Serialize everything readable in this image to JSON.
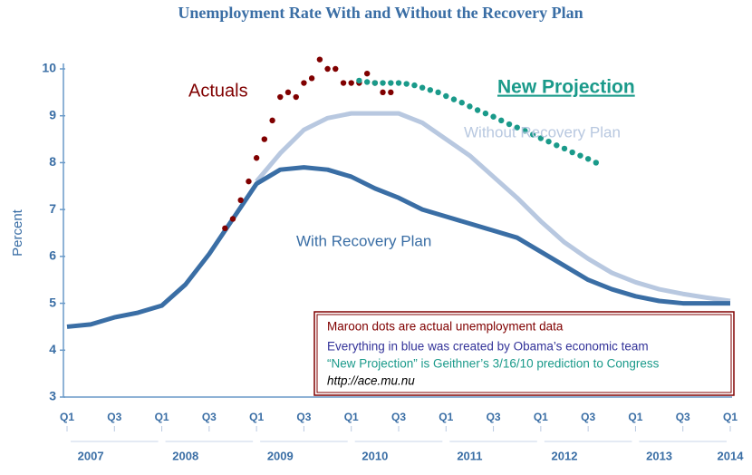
{
  "chart_data": {
    "type": "line",
    "title": "Unemployment Rate With and Without the Recovery Plan",
    "y_label": "Percent",
    "xlim": [
      2007,
      2014
    ],
    "ylim": [
      3,
      10
    ],
    "yticks": [
      3,
      4,
      5,
      6,
      7,
      8,
      9,
      10
    ],
    "xticks": [
      {
        "value": 2007,
        "label": "Q1"
      },
      {
        "value": 2007.5,
        "label": "Q3"
      },
      {
        "value": 2008,
        "label": "Q1"
      },
      {
        "value": 2008.5,
        "label": "Q3"
      },
      {
        "value": 2009,
        "label": "Q1"
      },
      {
        "value": 2009.5,
        "label": "Q3"
      },
      {
        "value": 2010,
        "label": "Q1"
      },
      {
        "value": 2010.5,
        "label": "Q3"
      },
      {
        "value": 2011,
        "label": "Q1"
      },
      {
        "value": 2011.5,
        "label": "Q3"
      },
      {
        "value": 2012,
        "label": "Q1"
      },
      {
        "value": 2012.5,
        "label": "Q3"
      },
      {
        "value": 2013,
        "label": "Q1"
      },
      {
        "value": 2013.5,
        "label": "Q3"
      },
      {
        "value": 2014,
        "label": "Q1"
      }
    ],
    "year_labels": [
      "2007",
      "2008",
      "2009",
      "2010",
      "2011",
      "2012",
      "2013",
      "2014"
    ],
    "grid": false,
    "series": [
      {
        "name": "With Recovery Plan",
        "color": "#3a6ea5",
        "style": "line",
        "x": [
          2007,
          2007.25,
          2007.5,
          2007.75,
          2008,
          2008.25,
          2008.5,
          2008.75,
          2009,
          2009.25,
          2009.5,
          2009.75,
          2010,
          2010.25,
          2010.5,
          2010.75,
          2011,
          2011.25,
          2011.5,
          2011.75,
          2012,
          2012.25,
          2012.5,
          2012.75,
          2013,
          2013.25,
          2013.5,
          2013.75,
          2014
        ],
        "values": [
          4.5,
          4.55,
          4.7,
          4.8,
          4.95,
          5.4,
          6.05,
          6.8,
          7.55,
          7.85,
          7.9,
          7.85,
          7.7,
          7.45,
          7.25,
          7.0,
          6.85,
          6.7,
          6.55,
          6.4,
          6.1,
          5.8,
          5.5,
          5.3,
          5.15,
          5.05,
          5.0,
          5.0,
          5.0
        ]
      },
      {
        "name": "Without Recovery Plan",
        "color": "#b8c8e0",
        "style": "line",
        "x": [
          2009,
          2009.25,
          2009.5,
          2009.75,
          2010,
          2010.25,
          2010.5,
          2010.75,
          2011,
          2011.25,
          2011.5,
          2011.75,
          2012,
          2012.25,
          2012.5,
          2012.75,
          2013,
          2013.25,
          2013.5,
          2013.75,
          2014
        ],
        "values": [
          7.6,
          8.2,
          8.7,
          8.95,
          9.05,
          9.05,
          9.05,
          8.85,
          8.5,
          8.15,
          7.7,
          7.25,
          6.75,
          6.3,
          5.95,
          5.65,
          5.45,
          5.3,
          5.2,
          5.12,
          5.05
        ]
      },
      {
        "name": "Actuals",
        "color": "#800000",
        "style": "dots",
        "x": [
          2008.667,
          2008.75,
          2008.833,
          2008.917,
          2009,
          2009.083,
          2009.167,
          2009.25,
          2009.333,
          2009.417,
          2009.5,
          2009.583,
          2009.667,
          2009.75,
          2009.833,
          2009.917,
          2010,
          2010.083,
          2010.167,
          2010.25,
          2010.333,
          2010.417
        ],
        "values": [
          6.6,
          6.8,
          7.2,
          7.6,
          8.1,
          8.5,
          8.9,
          9.4,
          9.5,
          9.4,
          9.7,
          9.8,
          10.2,
          10.0,
          10.0,
          9.7,
          9.7,
          9.7,
          9.9,
          9.7,
          9.5,
          9.5
        ]
      },
      {
        "name": "New Projection",
        "color": "#1a9a8a",
        "style": "dots",
        "x": [
          2010.083,
          2010.167,
          2010.25,
          2010.333,
          2010.417,
          2010.5,
          2010.583,
          2010.667,
          2010.75,
          2010.833,
          2010.917,
          2011,
          2011.083,
          2011.167,
          2011.25,
          2011.333,
          2011.417,
          2011.5,
          2011.583,
          2011.667,
          2011.75,
          2011.833,
          2011.917,
          2012,
          2012.083,
          2012.167,
          2012.25,
          2012.333,
          2012.417,
          2012.5,
          2012.583
        ],
        "values": [
          9.75,
          9.72,
          9.7,
          9.7,
          9.7,
          9.7,
          9.68,
          9.65,
          9.6,
          9.55,
          9.5,
          9.42,
          9.35,
          9.28,
          9.2,
          9.12,
          9.05,
          8.98,
          8.9,
          8.82,
          8.75,
          8.68,
          8.6,
          8.52,
          8.45,
          8.37,
          8.3,
          8.22,
          8.15,
          8.08,
          8.0
        ]
      }
    ],
    "notes": [
      {
        "text": "Maroon dots are actual unemployment data",
        "color": "#800000"
      },
      {
        "text": "Everything in blue was created by Obama’s economic team",
        "color": "#333399"
      },
      {
        "text": "“New Projection” is Geithner’s 3/16/10 prediction to Congress",
        "color": "#1a9a8a"
      },
      {
        "text": "http://ace.mu.nu",
        "color": "#000000"
      }
    ]
  }
}
